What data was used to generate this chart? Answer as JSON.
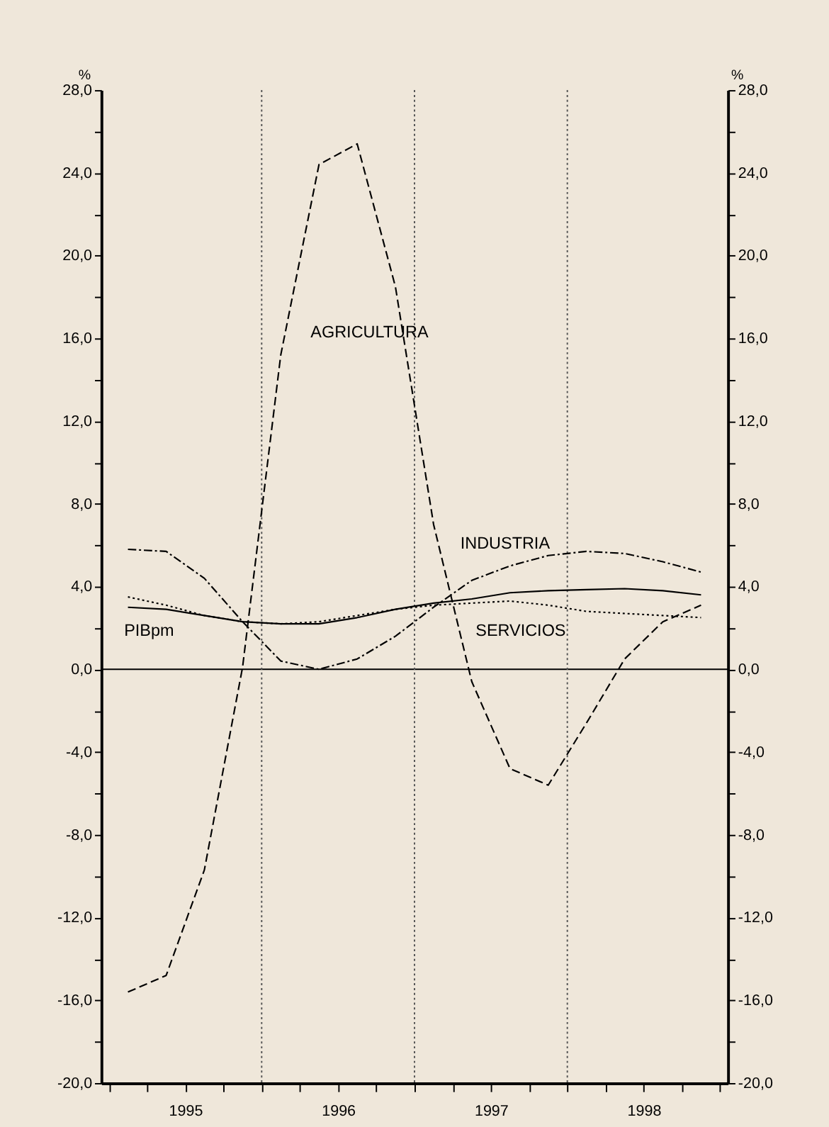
{
  "chart_data": {
    "type": "line",
    "ylabel": "%",
    "y2label": "%",
    "x": [
      1995.125,
      1995.375,
      1995.625,
      1995.875,
      1996.125,
      1996.375,
      1996.625,
      1996.875,
      1997.125,
      1997.375,
      1997.625,
      1997.875,
      1998.125,
      1998.375,
      1998.625,
      1998.875
    ],
    "series": [
      {
        "name": "AGRICULTURA",
        "color": "#000000",
        "line_style": "dashed",
        "values": [
          -15.6,
          -14.8,
          -9.7,
          0.1,
          15.2,
          24.4,
          25.4,
          18.5,
          7.0,
          -0.6,
          -4.8,
          -5.6,
          -2.6,
          0.5,
          2.3,
          3.1
        ]
      },
      {
        "name": "INDUSTRIA",
        "color": "#000000",
        "line_style": "dashdot",
        "values": [
          5.8,
          5.7,
          4.4,
          2.3,
          0.4,
          0.0,
          0.5,
          1.6,
          3.0,
          4.3,
          5.0,
          5.5,
          5.7,
          5.6,
          5.2,
          4.7
        ]
      },
      {
        "name": "SERVICIOS",
        "color": "#000000",
        "line_style": "dotted",
        "values": [
          3.5,
          3.1,
          2.6,
          2.3,
          2.2,
          2.3,
          2.6,
          2.9,
          3.1,
          3.2,
          3.3,
          3.1,
          2.8,
          2.7,
          2.6,
          2.5
        ]
      },
      {
        "name": "PIBpm",
        "color": "#000000",
        "line_style": "solid",
        "values": [
          3.0,
          2.9,
          2.6,
          2.3,
          2.2,
          2.2,
          2.5,
          2.9,
          3.2,
          3.4,
          3.7,
          3.8,
          3.85,
          3.9,
          3.8,
          3.6
        ]
      }
    ],
    "xlim": [
      1994.95,
      1999.05
    ],
    "xticks": [
      {
        "value": 1995.0,
        "label": null
      },
      {
        "value": 1995.25,
        "label": null
      },
      {
        "value": 1995.5,
        "label": "1995"
      },
      {
        "value": 1995.75,
        "label": null
      },
      {
        "value": 1996.0,
        "label": null
      },
      {
        "value": 1996.25,
        "label": null
      },
      {
        "value": 1996.5,
        "label": "1996"
      },
      {
        "value": 1996.75,
        "label": null
      },
      {
        "value": 1997.0,
        "label": null
      },
      {
        "value": 1997.25,
        "label": null
      },
      {
        "value": 1997.5,
        "label": "1997"
      },
      {
        "value": 1997.75,
        "label": null
      },
      {
        "value": 1998.0,
        "label": null
      },
      {
        "value": 1998.25,
        "label": null
      },
      {
        "value": 1998.5,
        "label": "1998"
      },
      {
        "value": 1998.75,
        "label": null
      },
      {
        "value": 1999.0,
        "label": null
      }
    ],
    "ylim": [
      -20,
      28
    ],
    "yticks": [
      {
        "value": -20,
        "label": "-20,0"
      },
      {
        "value": -18,
        "label": null
      },
      {
        "value": -16,
        "label": "-16,0"
      },
      {
        "value": -14,
        "label": null
      },
      {
        "value": -12,
        "label": "-12,0"
      },
      {
        "value": -10,
        "label": null
      },
      {
        "value": -8,
        "label": "-8,0"
      },
      {
        "value": -6,
        "label": null
      },
      {
        "value": -4,
        "label": "-4,0"
      },
      {
        "value": -2,
        "label": null
      },
      {
        "value": 0,
        "label": "0,0"
      },
      {
        "value": 2,
        "label": null
      },
      {
        "value": 4,
        "label": "4,0"
      },
      {
        "value": 6,
        "label": null
      },
      {
        "value": 8,
        "label": "8,0"
      },
      {
        "value": 10,
        "label": null
      },
      {
        "value": 12,
        "label": "12,0"
      },
      {
        "value": 14,
        "label": null
      },
      {
        "value": 16,
        "label": "16,0"
      },
      {
        "value": 18,
        "label": null
      },
      {
        "value": 20,
        "label": "20,0"
      },
      {
        "value": 22,
        "label": null
      },
      {
        "value": 24,
        "label": "24,0"
      },
      {
        "value": 26,
        "label": null
      },
      {
        "value": 28,
        "label": "28,0"
      }
    ],
    "y2lim": [
      -20,
      28
    ],
    "y2ticks": [
      {
        "value": -20,
        "label": "-20,0"
      },
      {
        "value": -18,
        "label": null
      },
      {
        "value": -16,
        "label": "-16,0"
      },
      {
        "value": -14,
        "label": null
      },
      {
        "value": -12,
        "label": "-12,0"
      },
      {
        "value": -10,
        "label": null
      },
      {
        "value": -8,
        "label": "-8,0"
      },
      {
        "value": -6,
        "label": null
      },
      {
        "value": -4,
        "label": "-4,0"
      },
      {
        "value": -2,
        "label": null
      },
      {
        "value": 0,
        "label": "0,0"
      },
      {
        "value": 2,
        "label": null
      },
      {
        "value": 4,
        "label": "4,0"
      },
      {
        "value": 6,
        "label": null
      },
      {
        "value": 8,
        "label": "8,0"
      },
      {
        "value": 10,
        "label": null
      },
      {
        "value": 12,
        "label": "12,0"
      },
      {
        "value": 14,
        "label": null
      },
      {
        "value": 16,
        "label": "16,0"
      },
      {
        "value": 18,
        "label": null
      },
      {
        "value": 20,
        "label": "20,0"
      },
      {
        "value": 22,
        "label": null
      },
      {
        "value": 24,
        "label": "24,0"
      },
      {
        "value": 26,
        "label": null
      },
      {
        "value": 28,
        "label": "28,0"
      }
    ],
    "ref_lines": [
      {
        "axis": "y",
        "value": 0,
        "color": "#000000",
        "line_style": "solid"
      },
      {
        "axis": "x",
        "value": 1996.0,
        "color": "#555555",
        "line_style": "dotted"
      },
      {
        "axis": "x",
        "value": 1997.0,
        "color": "#555555",
        "line_style": "dotted"
      },
      {
        "axis": "x",
        "value": 1998.0,
        "color": "#555555",
        "line_style": "dotted"
      }
    ],
    "grid": false,
    "legend": false,
    "marker": "none"
  }
}
